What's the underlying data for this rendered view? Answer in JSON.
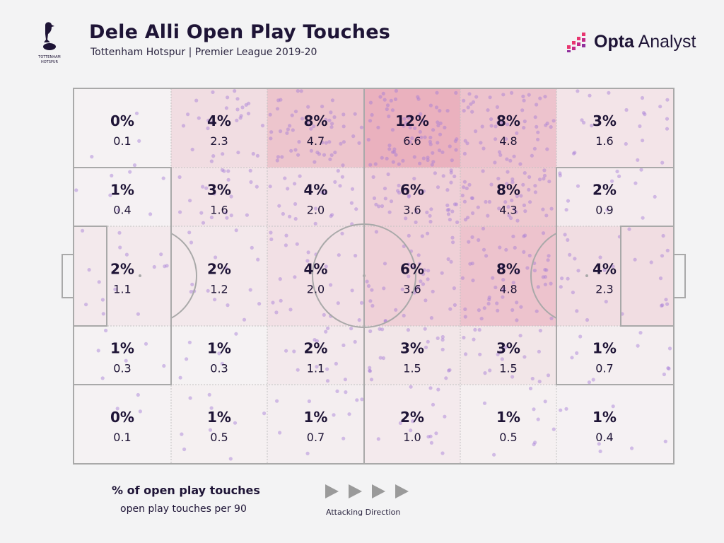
{
  "header": {
    "title": "Dele Alli Open Play Touches",
    "subtitle": "Tottenham Hotspur | Premier League 2019-20",
    "brand_bold": "Opta",
    "brand_rest": " Analyst"
  },
  "chart_data": {
    "type": "heatmap",
    "title": "Dele Alli Open Play Touches",
    "subtitle": "Tottenham Hotspur | Premier League 2019-20",
    "columns": 6,
    "rows": 5,
    "cells": [
      [
        {
          "pct": "0%",
          "per90": "0.1"
        },
        {
          "pct": "4%",
          "per90": "2.3"
        },
        {
          "pct": "8%",
          "per90": "4.7"
        },
        {
          "pct": "12%",
          "per90": "6.6"
        },
        {
          "pct": "8%",
          "per90": "4.8"
        },
        {
          "pct": "3%",
          "per90": "1.6"
        }
      ],
      [
        {
          "pct": "1%",
          "per90": "0.4"
        },
        {
          "pct": "3%",
          "per90": "1.6"
        },
        {
          "pct": "4%",
          "per90": "2.0"
        },
        {
          "pct": "6%",
          "per90": "3.6"
        },
        {
          "pct": "8%",
          "per90": "4.3"
        },
        {
          "pct": "2%",
          "per90": "0.9"
        }
      ],
      [
        {
          "pct": "2%",
          "per90": "1.1"
        },
        {
          "pct": "2%",
          "per90": "1.2"
        },
        {
          "pct": "4%",
          "per90": "2.0"
        },
        {
          "pct": "6%",
          "per90": "3.6"
        },
        {
          "pct": "8%",
          "per90": "4.8"
        },
        {
          "pct": "4%",
          "per90": "2.3"
        }
      ],
      [
        {
          "pct": "1%",
          "per90": "0.3"
        },
        {
          "pct": "1%",
          "per90": "0.3"
        },
        {
          "pct": "2%",
          "per90": "1.1"
        },
        {
          "pct": "3%",
          "per90": "1.5"
        },
        {
          "pct": "3%",
          "per90": "1.5"
        },
        {
          "pct": "1%",
          "per90": "0.7"
        }
      ],
      [
        {
          "pct": "0%",
          "per90": "0.1"
        },
        {
          "pct": "1%",
          "per90": "0.5"
        },
        {
          "pct": "1%",
          "per90": "0.7"
        },
        {
          "pct": "2%",
          "per90": "1.0"
        },
        {
          "pct": "1%",
          "per90": "0.5"
        },
        {
          "pct": "1%",
          "per90": "0.4"
        }
      ]
    ],
    "legend": {
      "primary": "% of open play touches",
      "secondary": "open play touches per 90"
    },
    "direction_label": "Attacking Direction"
  },
  "colors": {
    "ink": "#1e1436",
    "heat": "#d9536f",
    "dot": "#a47ad6",
    "line": "#a9a9a9",
    "brand_accent": "#e8356f"
  }
}
